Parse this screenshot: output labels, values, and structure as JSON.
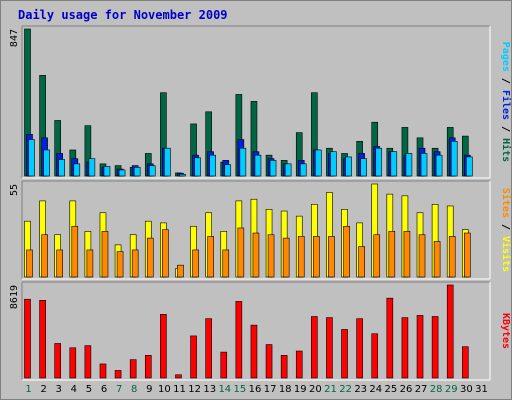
{
  "colors": {
    "background": "#c0c0c0",
    "hits": "#006644",
    "files": "#0022dd",
    "pages": "#00ccff",
    "visits": "#ffff00",
    "sites": "#ff8800",
    "kbytes": "#ff0000",
    "title": "#0000cc",
    "weekend_label": "#006644",
    "weekday_label": "#000000"
  },
  "chart_data": {
    "type": "bar",
    "title": "Daily usage for November 2009",
    "categories": [
      "1",
      "2",
      "3",
      "4",
      "5",
      "6",
      "7",
      "8",
      "9",
      "10",
      "11",
      "12",
      "13",
      "14",
      "15",
      "16",
      "17",
      "18",
      "19",
      "20",
      "21",
      "22",
      "23",
      "24",
      "25",
      "26",
      "27",
      "28",
      "29",
      "30",
      "31"
    ],
    "weekend_days": [
      "1",
      "7",
      "8",
      "14",
      "15",
      "21",
      "22",
      "28",
      "29"
    ],
    "panels": [
      {
        "axis_max_label": "847",
        "ylim": [
          0,
          847
        ],
        "legend": [
          {
            "text": "Pages",
            "color_key": "pages"
          },
          {
            "text": " / ",
            "color_key": "weekday_label"
          },
          {
            "text": "Files",
            "color_key": "files"
          },
          {
            "text": " / ",
            "color_key": "weekday_label"
          },
          {
            "text": "Hits",
            "color_key": "hits"
          }
        ],
        "series": [
          {
            "name": "Hits",
            "color_key": "hits",
            "values": [
              847,
              580,
              320,
              150,
              290,
              70,
              60,
              50,
              130,
              480,
              18,
              300,
              370,
              80,
              470,
              430,
              120,
              90,
              250,
              480,
              160,
              130,
              200,
              310,
              160,
              280,
              220,
              160,
              280,
              230,
              0
            ]
          },
          {
            "name": "Files",
            "color_key": "files",
            "values": [
              240,
              220,
              130,
              100,
              80,
              50,
              40,
              60,
              70,
              160,
              16,
              120,
              140,
              90,
              210,
              140,
              100,
              70,
              90,
              150,
              130,
              100,
              130,
              170,
              140,
              120,
              160,
              140,
              220,
              120,
              0
            ]
          },
          {
            "name": "Pages",
            "color_key": "pages",
            "values": [
              210,
              150,
              95,
              70,
              100,
              55,
              35,
              50,
              60,
              160,
              10,
              105,
              120,
              65,
              160,
              120,
              90,
              70,
              70,
              150,
              140,
              110,
              100,
              160,
              140,
              130,
              130,
              120,
              200,
              110,
              0
            ]
          }
        ]
      },
      {
        "axis_max_label": "55",
        "ylim": [
          0,
          55
        ],
        "legend": [
          {
            "text": "Sites",
            "color_key": "sites"
          },
          {
            "text": " / ",
            "color_key": "weekday_label"
          },
          {
            "text": "Visits",
            "color_key": "visits"
          }
        ],
        "series": [
          {
            "name": "Visits",
            "color_key": "visits",
            "values": [
              33,
              45,
              25,
              45,
              27,
              38,
              19,
              25,
              33,
              32,
              5,
              30,
              38,
              27,
              45,
              46,
              40,
              39,
              36,
              43,
              50,
              40,
              32,
              55,
              49,
              48,
              38,
              43,
              42,
              28,
              0
            ]
          },
          {
            "name": "Sites",
            "color_key": "sites",
            "values": [
              16,
              25,
              16,
              30,
              16,
              27,
              15,
              16,
              23,
              28,
              7,
              16,
              24,
              16,
              29,
              26,
              25,
              23,
              24,
              24,
              24,
              30,
              18,
              25,
              27,
              27,
              25,
              21,
              24,
              26,
              0
            ]
          }
        ]
      },
      {
        "axis_max_label": "8619",
        "ylim": [
          0,
          8619
        ],
        "legend": [
          {
            "text": "KBytes",
            "color_key": "kbytes"
          }
        ],
        "series": [
          {
            "name": "KBytes",
            "color_key": "kbytes",
            "values": [
              7300,
              7200,
              3200,
              2800,
              3000,
              1300,
              700,
              1700,
              2100,
              5900,
              300,
              3900,
              5500,
              2400,
              7100,
              4900,
              3100,
              2100,
              2500,
              5700,
              5600,
              4500,
              5500,
              4100,
              7400,
              5600,
              5800,
              5700,
              8619,
              2900,
              0
            ]
          }
        ]
      }
    ]
  }
}
